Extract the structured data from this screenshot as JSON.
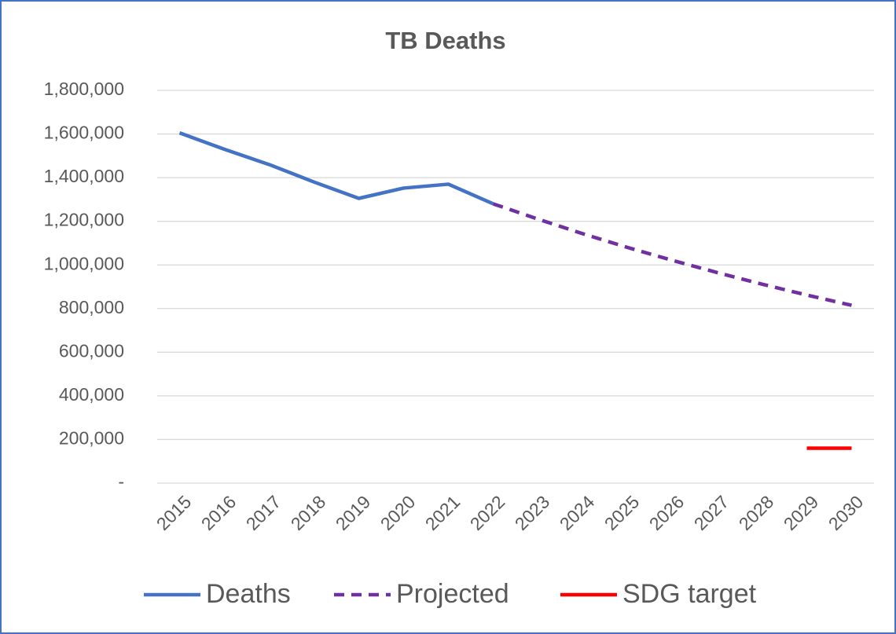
{
  "chart_data": {
    "type": "line",
    "title": "TB Deaths",
    "categories": [
      "2015",
      "2016",
      "2017",
      "2018",
      "2019",
      "2020",
      "2021",
      "2022",
      "2023",
      "2024",
      "2025",
      "2026",
      "2027",
      "2028",
      "2029",
      "2030"
    ],
    "series": [
      {
        "name": "Deaths",
        "color": "#4472c4",
        "dash": false,
        "values": [
          1605000,
          1530000,
          1460000,
          1380000,
          1305000,
          1352000,
          1370000,
          1280000,
          null,
          null,
          null,
          null,
          null,
          null,
          null,
          null
        ]
      },
      {
        "name": "Projected",
        "color": "#7030a0",
        "dash": true,
        "values": [
          null,
          null,
          null,
          null,
          null,
          null,
          null,
          1280000,
          1210000,
          1143000,
          1080000,
          1021000,
          965000,
          912000,
          862000,
          815000
        ]
      },
      {
        "name": "SDG target",
        "color": "#ff0000",
        "dash": false,
        "values": [
          null,
          null,
          null,
          null,
          null,
          null,
          null,
          null,
          null,
          null,
          null,
          null,
          null,
          null,
          160000,
          160000
        ]
      }
    ],
    "ylim": [
      0,
      1800000
    ],
    "yticks": [
      {
        "value": 0,
        "label": "-"
      },
      {
        "value": 200000,
        "label": "200,000"
      },
      {
        "value": 400000,
        "label": "400,000"
      },
      {
        "value": 600000,
        "label": "600,000"
      },
      {
        "value": 800000,
        "label": "800,000"
      },
      {
        "value": 1000000,
        "label": "1,000,000"
      },
      {
        "value": 1200000,
        "label": "1,200,000"
      },
      {
        "value": 1400000,
        "label": "1,400,000"
      },
      {
        "value": 1600000,
        "label": "1,600,000"
      },
      {
        "value": 1800000,
        "label": "1,800,000"
      }
    ],
    "grid": true,
    "legend": "bottom"
  }
}
